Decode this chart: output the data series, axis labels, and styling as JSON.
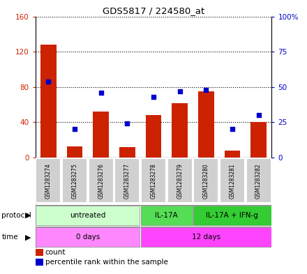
{
  "title": "GDS5817 / 224580_at",
  "samples": [
    "GSM1283274",
    "GSM1283275",
    "GSM1283276",
    "GSM1283277",
    "GSM1283278",
    "GSM1283279",
    "GSM1283280",
    "GSM1283281",
    "GSM1283282"
  ],
  "counts": [
    128,
    13,
    52,
    12,
    48,
    62,
    75,
    8,
    40
  ],
  "percentiles": [
    54,
    20,
    46,
    24,
    43,
    47,
    48,
    20,
    30
  ],
  "ylim_left": [
    0,
    160
  ],
  "ylim_right": [
    0,
    100
  ],
  "yticks_left": [
    0,
    40,
    80,
    120,
    160
  ],
  "yticks_right": [
    0,
    25,
    50,
    75,
    100
  ],
  "ytick_labels_left": [
    "0",
    "40",
    "80",
    "120",
    "160"
  ],
  "ytick_labels_right": [
    "0",
    "25",
    "50",
    "75",
    "100%"
  ],
  "bar_color": "#cc2200",
  "dot_color": "#0000cc",
  "grid_color": "#000000",
  "protocol_groups": [
    {
      "label": "untreated",
      "start": 0,
      "end": 4,
      "color": "#ccffcc"
    },
    {
      "label": "IL-17A",
      "start": 4,
      "end": 6,
      "color": "#55dd55"
    },
    {
      "label": "IL-17A + IFN-g",
      "start": 6,
      "end": 9,
      "color": "#33cc33"
    }
  ],
  "time_groups": [
    {
      "label": "0 days",
      "start": 0,
      "end": 4,
      "color": "#ff88ff"
    },
    {
      "label": "12 days",
      "start": 4,
      "end": 9,
      "color": "#ff44ff"
    }
  ],
  "legend_count_label": "count",
  "legend_pct_label": "percentile rank within the sample",
  "protocol_label": "protocol",
  "time_label": "time",
  "sample_bg_color": "#d0d0d0",
  "border_color": "#888888"
}
